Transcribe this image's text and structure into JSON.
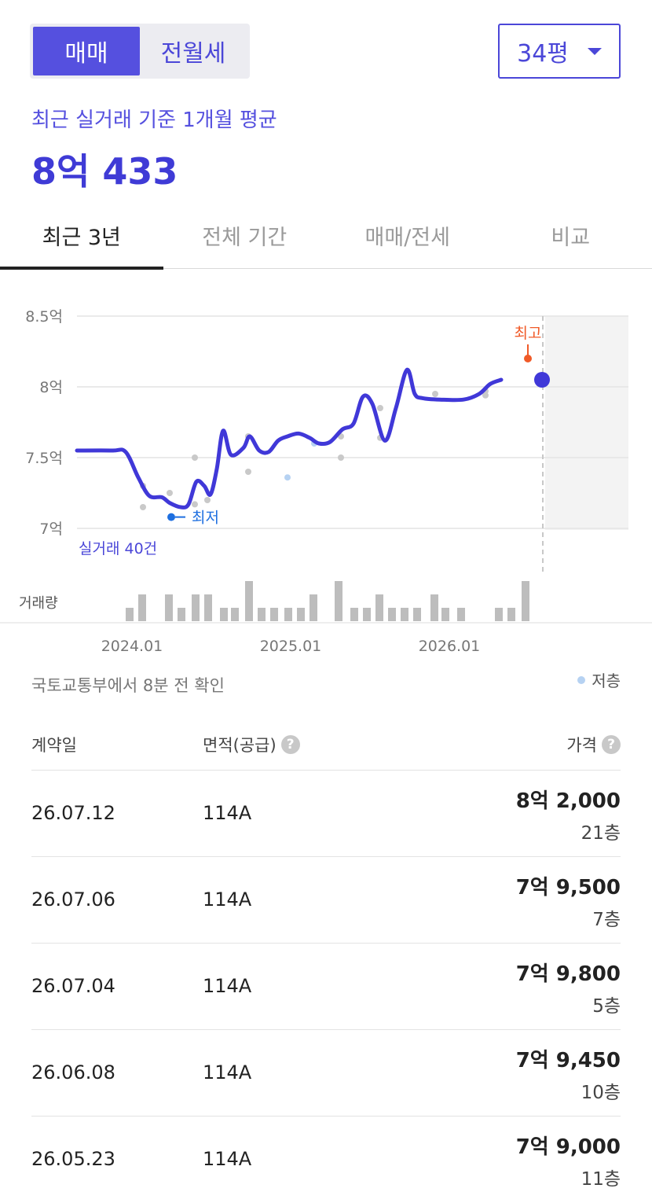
{
  "trade_toggle": {
    "options": [
      "매매",
      "전월세"
    ],
    "selected": "매매"
  },
  "size_select": {
    "value": "34평"
  },
  "average": {
    "label": "최근 실거래 기준 1개월 평균",
    "value": "8억 433"
  },
  "period_tabs": {
    "items": [
      "최근 3년",
      "전체 기간",
      "매매/전세",
      "비교"
    ],
    "active": "최근 3년"
  },
  "chart_data": {
    "type": "line",
    "y_ticks": [
      "8.5억",
      "8억",
      "7.5억",
      "7억"
    ],
    "y_tick_values": [
      8.5,
      8.0,
      7.5,
      7.0
    ],
    "ylim": [
      7.0,
      8.5
    ],
    "x_ticks": [
      "2024.01",
      "2025.01",
      "2026.01"
    ],
    "trade_count_label": "실거래 40건",
    "volume_label": "거래량",
    "max_marker_label": "최고",
    "min_marker_label": "최저",
    "grid": true,
    "trend_line": [
      [
        0,
        7.55
      ],
      [
        45,
        7.55
      ],
      [
        62,
        7.54
      ],
      [
        78,
        7.36
      ],
      [
        92,
        7.23
      ],
      [
        108,
        7.22
      ],
      [
        118,
        7.18
      ],
      [
        132,
        7.15
      ],
      [
        142,
        7.17
      ],
      [
        152,
        7.33
      ],
      [
        162,
        7.3
      ],
      [
        170,
        7.24
      ],
      [
        178,
        7.42
      ],
      [
        186,
        7.69
      ],
      [
        196,
        7.52
      ],
      [
        212,
        7.57
      ],
      [
        220,
        7.65
      ],
      [
        232,
        7.55
      ],
      [
        244,
        7.54
      ],
      [
        256,
        7.62
      ],
      [
        268,
        7.65
      ],
      [
        282,
        7.67
      ],
      [
        296,
        7.64
      ],
      [
        308,
        7.6
      ],
      [
        322,
        7.61
      ],
      [
        338,
        7.7
      ],
      [
        352,
        7.74
      ],
      [
        364,
        7.93
      ],
      [
        376,
        7.88
      ],
      [
        392,
        7.62
      ],
      [
        406,
        7.85
      ],
      [
        420,
        8.12
      ],
      [
        430,
        7.95
      ],
      [
        440,
        7.92
      ],
      [
        462,
        7.91
      ],
      [
        492,
        7.91
      ],
      [
        512,
        7.95
      ],
      [
        526,
        8.02
      ],
      [
        540,
        8.05
      ]
    ],
    "scatter_points": [
      [
        84,
        7.3,
        "n"
      ],
      [
        84,
        7.15,
        "n"
      ],
      [
        118,
        7.25,
        "n"
      ],
      [
        150,
        7.5,
        "n"
      ],
      [
        150,
        7.17,
        "n"
      ],
      [
        166,
        7.2,
        "n"
      ],
      [
        218,
        7.65,
        "n"
      ],
      [
        218,
        7.4,
        "n"
      ],
      [
        268,
        7.36,
        "l"
      ],
      [
        302,
        7.6,
        "l"
      ],
      [
        336,
        7.65,
        "n"
      ],
      [
        336,
        7.5,
        "n"
      ],
      [
        386,
        7.85,
        "n"
      ],
      [
        386,
        7.64,
        "n"
      ],
      [
        456,
        7.95,
        "n"
      ],
      [
        520,
        7.97,
        "n"
      ],
      [
        520,
        7.94,
        "n"
      ]
    ],
    "volume_bars": [
      [
        62,
        1
      ],
      [
        78,
        2
      ],
      [
        112,
        2
      ],
      [
        128,
        1
      ],
      [
        146,
        2
      ],
      [
        162,
        2
      ],
      [
        182,
        1
      ],
      [
        196,
        1
      ],
      [
        214,
        3
      ],
      [
        230,
        1
      ],
      [
        246,
        1
      ],
      [
        264,
        1
      ],
      [
        280,
        1
      ],
      [
        296,
        2
      ],
      [
        328,
        3
      ],
      [
        348,
        1
      ],
      [
        364,
        1
      ],
      [
        380,
        2
      ],
      [
        396,
        1
      ],
      [
        412,
        1
      ],
      [
        428,
        1
      ],
      [
        450,
        2
      ],
      [
        464,
        1
      ],
      [
        484,
        1
      ],
      [
        532,
        1
      ],
      [
        548,
        1
      ],
      [
        566,
        3
      ]
    ],
    "current_value": 8.05,
    "max_value": 8.2,
    "min_value": 7.08,
    "legend": [
      {
        "name": "저층",
        "color": "#b6d2f2"
      }
    ],
    "colors": {
      "line": "#4038d8",
      "max": "#f05a28",
      "min": "#1e6fe0",
      "point": "#c9c9c9"
    }
  },
  "source_note": "국토교통부에서 8분 전 확인",
  "legend_low_floor": "저층",
  "table": {
    "headers": {
      "date": "계약일",
      "area": "면적(공급)",
      "price": "가격"
    },
    "rows": [
      {
        "date": "26.07.12",
        "area": "114A",
        "price": "8억 2,000",
        "floor": "21층"
      },
      {
        "date": "26.07.06",
        "area": "114A",
        "price": "7억 9,500",
        "floor": "7층"
      },
      {
        "date": "26.07.04",
        "area": "114A",
        "price": "7억 9,800",
        "floor": "5층"
      },
      {
        "date": "26.06.08",
        "area": "114A",
        "price": "7억 9,450",
        "floor": "10층"
      },
      {
        "date": "26.05.23",
        "area": "114A",
        "price": "7억 9,000",
        "floor": "11층"
      }
    ]
  }
}
